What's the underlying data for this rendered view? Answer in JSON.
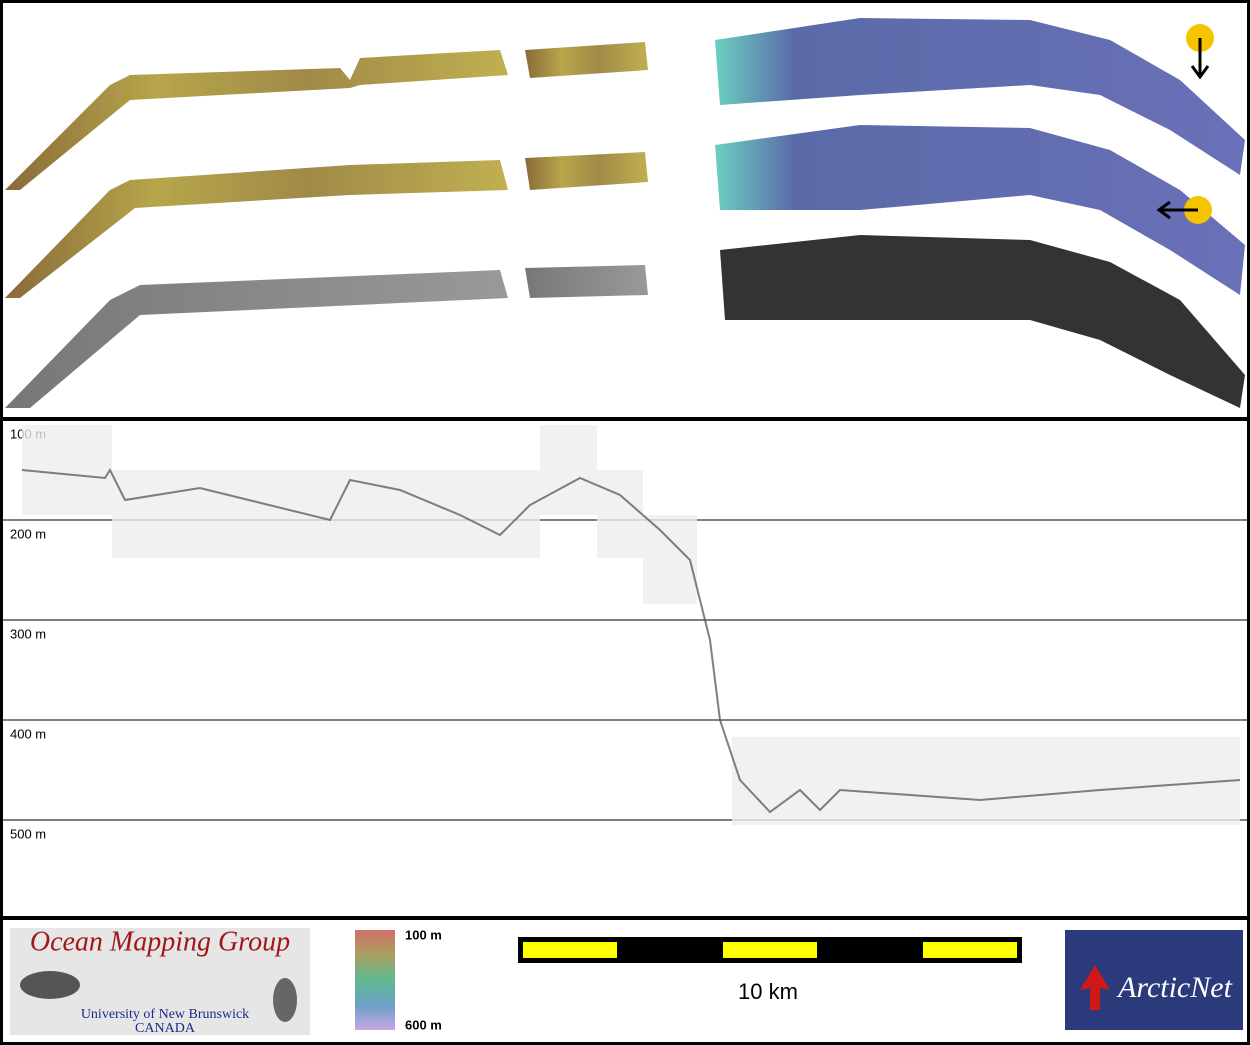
{
  "profile": {
    "depth_ticks": [
      {
        "value": 100,
        "label": "100 m"
      },
      {
        "value": 200,
        "label": "200 m"
      },
      {
        "value": 300,
        "label": "300 m"
      },
      {
        "value": 400,
        "label": "400 m"
      },
      {
        "value": 500,
        "label": "500 m"
      }
    ]
  },
  "legend": {
    "colorbar": {
      "top_label": "100 m",
      "bottom_label": "600 m"
    },
    "scale_bar": {
      "label": "10 km"
    }
  },
  "logos": {
    "omg": {
      "title": "Ocean Mapping Group",
      "university": "University of New Brunswick",
      "country": "CANADA"
    },
    "arcticnet": "ArcticNet"
  }
}
